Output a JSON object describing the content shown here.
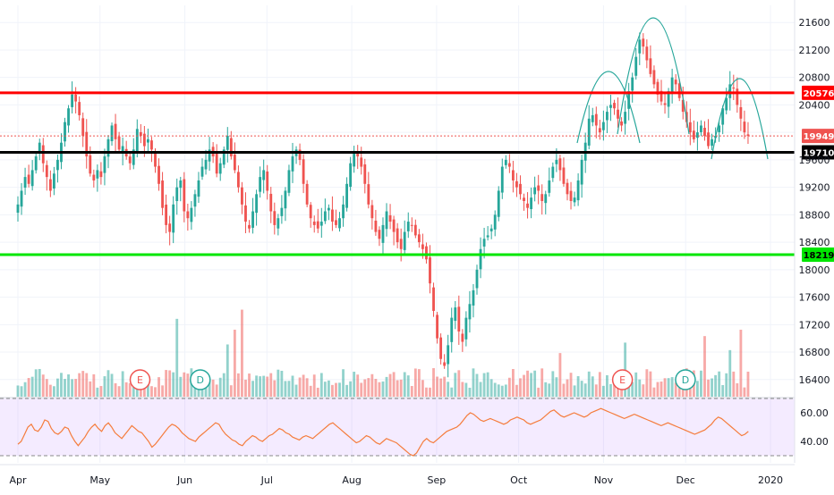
{
  "chart_data": [
    {
      "type": "candlestick",
      "panel": "price",
      "y_axis_ticks": [
        21600,
        21200,
        20800,
        20400,
        20000,
        19600,
        19200,
        18800,
        18400,
        18000,
        17600,
        17200,
        16800,
        16400
      ],
      "ylim": [
        16150,
        21850
      ],
      "x_axis_labels": [
        {
          "label": "Apr",
          "day": 0
        },
        {
          "label": "May",
          "day": 30
        },
        {
          "label": "Jun",
          "day": 61
        },
        {
          "label": "Jul",
          "day": 91
        },
        {
          "label": "Aug",
          "day": 122
        },
        {
          "label": "Sep",
          "day": 153
        },
        {
          "label": "Oct",
          "day": 183
        },
        {
          "label": "Nov",
          "day": 214
        },
        {
          "label": "Dec",
          "day": 244
        },
        {
          "label": "2020",
          "day": 275
        }
      ],
      "price_lines": [
        {
          "value": 20576,
          "label": "20576",
          "color": "#ff0000"
        },
        {
          "value": 19710,
          "label": "19710",
          "color": "#000000"
        },
        {
          "value": 18219,
          "label": "18219",
          "color": "#00e600"
        },
        {
          "value": 19949,
          "label": "19949",
          "color": "#ef5350",
          "style": "dotted"
        }
      ],
      "closes": [
        18950,
        19150,
        19350,
        19250,
        19450,
        19650,
        19850,
        19550,
        19350,
        19150,
        19400,
        19600,
        19850,
        20150,
        20350,
        20550,
        20450,
        20250,
        19950,
        19650,
        19400,
        19300,
        19450,
        19350,
        19650,
        19900,
        20100,
        19900,
        19750,
        19800,
        19650,
        19550,
        19750,
        20050,
        19950,
        19800,
        19900,
        19750,
        19500,
        19250,
        18900,
        18650,
        18550,
        18950,
        19200,
        19300,
        18850,
        18750,
        18900,
        19100,
        19300,
        19500,
        19600,
        19750,
        19650,
        19400,
        19550,
        19750,
        19950,
        19650,
        19450,
        19200,
        18950,
        18700,
        18600,
        18850,
        19100,
        19350,
        19450,
        19150,
        18850,
        18650,
        18750,
        18900,
        19150,
        19450,
        19650,
        19750,
        19600,
        19250,
        18950,
        18750,
        18650,
        18600,
        18700,
        18850,
        18900,
        18700,
        18650,
        18750,
        18950,
        19250,
        19550,
        19700,
        19650,
        19500,
        19250,
        18950,
        18750,
        18550,
        18450,
        18650,
        18850,
        18700,
        18550,
        18400,
        18300,
        18550,
        18700,
        18650,
        18500,
        18400,
        18300,
        18150,
        17800,
        17400,
        17000,
        16700,
        16600,
        16900,
        17300,
        17450,
        17100,
        16950,
        17300,
        17500,
        17700,
        18000,
        18300,
        18450,
        18500,
        18600,
        18800,
        19150,
        19500,
        19600,
        19500,
        19300,
        19200,
        19100,
        19000,
        18900,
        19050,
        19200,
        19150,
        19000,
        19100,
        19300,
        19500,
        19600,
        19450,
        19250,
        19100,
        19000,
        19050,
        19300,
        19600,
        19850,
        20200,
        20250,
        20100,
        20000,
        20150,
        20300,
        20400,
        20350,
        20200,
        20100,
        20300,
        20600,
        20800,
        21100,
        21350,
        21250,
        21050,
        20850,
        20700,
        20550,
        20450,
        20400,
        20600,
        20800,
        20700,
        20500,
        20300,
        20150,
        20000,
        19900,
        20000,
        20100,
        19950,
        19800,
        19900,
        19950,
        20100,
        20350,
        20500,
        20700,
        20650,
        20400,
        20200,
        20000,
        19949
      ],
      "volume_heights_rel": "approx 8–100 units; spikes near late May, mid-Jun, late Sep, mid-Nov, early Dec",
      "annotations": [
        {
          "text": "E",
          "day": 43
        },
        {
          "text": "D",
          "day": 65
        },
        {
          "text": "E",
          "day": 217
        },
        {
          "text": "D",
          "day": 240
        }
      ]
    },
    {
      "type": "line",
      "panel": "RSI",
      "y_axis_ticks": [
        60.0,
        40.0
      ],
      "ylim": [
        25,
        70
      ],
      "band": [
        30,
        70
      ],
      "values": [
        38,
        40,
        45,
        50,
        52,
        48,
        47,
        50,
        55,
        54,
        49,
        46,
        45,
        47,
        50,
        49,
        44,
        40,
        37,
        40,
        43,
        47,
        50,
        52,
        49,
        47,
        51,
        53,
        50,
        46,
        44,
        42,
        45,
        48,
        51,
        49,
        47,
        46,
        43,
        40,
        36,
        38,
        41,
        44,
        47,
        50,
        52,
        51,
        49,
        46,
        44,
        42,
        41,
        40,
        43,
        45,
        47,
        49,
        51,
        53,
        52,
        48,
        45,
        43,
        41,
        40,
        38,
        37,
        40,
        42,
        44,
        43,
        41,
        40,
        42,
        44,
        45,
        47,
        49,
        48,
        46,
        45,
        43,
        42,
        41,
        43,
        44,
        43,
        42,
        44,
        46,
        48,
        50,
        52,
        53,
        51,
        49,
        47,
        45,
        43,
        41,
        39,
        40,
        42,
        44,
        43,
        41,
        39,
        38,
        40,
        42,
        41,
        40,
        39,
        37,
        35,
        33,
        31,
        30,
        32,
        36,
        40,
        42,
        40,
        39,
        41,
        43,
        45,
        47,
        48,
        49,
        50,
        52,
        55,
        58,
        60,
        59,
        57,
        55,
        54,
        55,
        56,
        55,
        54,
        53,
        52,
        53,
        55,
        56,
        57,
        56,
        55,
        53,
        52,
        53,
        54,
        55,
        57,
        59,
        61,
        62,
        60,
        58,
        57,
        58,
        59,
        60,
        59,
        58,
        57,
        58,
        60,
        61,
        62,
        63,
        62,
        61,
        60,
        59,
        58,
        57,
        56,
        57,
        58,
        59,
        58,
        57,
        56,
        55,
        54,
        53,
        52,
        51,
        52,
        53,
        52,
        51,
        50,
        49,
        48,
        47,
        46,
        45,
        46,
        47,
        48,
        50,
        52,
        55,
        57,
        56,
        54,
        52,
        50,
        48,
        46,
        44,
        45,
        47
      ]
    }
  ]
}
